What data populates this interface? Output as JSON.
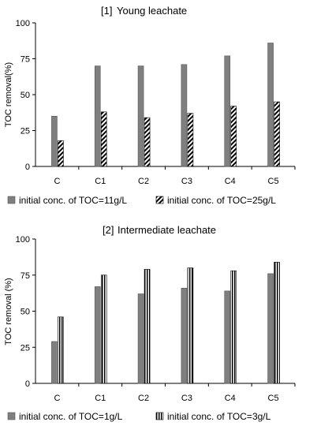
{
  "chart_data": [
    {
      "type": "bar",
      "tag": "[1]",
      "title": "Young leachate",
      "ylabel": "TOC removal(%)",
      "xlabel": "",
      "ylim": [
        0,
        100
      ],
      "yticks": [
        "0",
        "25",
        "50",
        "75",
        "100"
      ],
      "categories": [
        "C",
        "C1",
        "C2",
        "C3",
        "C4",
        "C5"
      ],
      "series": [
        {
          "name": "initial conc. of TOC=11g/L",
          "values": [
            35,
            70,
            70,
            71,
            77,
            86
          ],
          "color": "#7f7f7f",
          "pattern": "solid"
        },
        {
          "name": "initial conc. of TOC=25g/L",
          "values": [
            18,
            38,
            34,
            37,
            42,
            45
          ],
          "color": "#000000",
          "pattern": "diagonal"
        }
      ],
      "grid": false,
      "legend": "bottom"
    },
    {
      "type": "bar",
      "tag": "[2]",
      "title": "Intermediate leachate",
      "ylabel": "TOC removal (%)",
      "xlabel": "",
      "ylim": [
        0,
        100
      ],
      "yticks": [
        "0",
        "25",
        "50",
        "75",
        "100"
      ],
      "categories": [
        "C",
        "C1",
        "C2",
        "C3",
        "C4",
        "C5"
      ],
      "series": [
        {
          "name": "initial conc. of TOC=1g/L",
          "values": [
            29,
            67,
            62,
            66,
            64,
            76
          ],
          "color": "#7f7f7f",
          "pattern": "solid"
        },
        {
          "name": "initial conc. of TOC=3g/L",
          "values": [
            46,
            75,
            79,
            80,
            78,
            84
          ],
          "color": "#000000",
          "pattern": "vertical"
        }
      ],
      "grid": false,
      "legend": "bottom"
    }
  ]
}
